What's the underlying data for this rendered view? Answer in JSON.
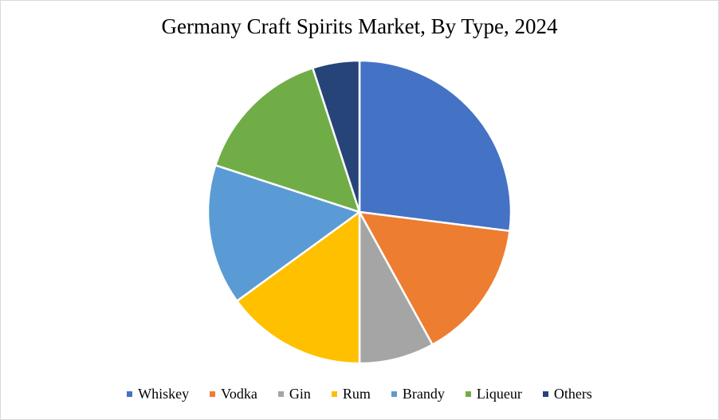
{
  "chart_data": {
    "type": "pie",
    "title": "Germany Craft Spirits Market, By Type, 2024",
    "legend_position": "bottom",
    "slices": [
      {
        "label": "Whiskey",
        "value": 27,
        "color": "#4472C4"
      },
      {
        "label": "Vodka",
        "value": 15,
        "color": "#ED7D31"
      },
      {
        "label": "Gin",
        "value": 8,
        "color": "#A5A5A5"
      },
      {
        "label": "Rum",
        "value": 15,
        "color": "#FFC000"
      },
      {
        "label": "Brandy",
        "value": 15,
        "color": "#5B9BD5"
      },
      {
        "label": "Liqueur",
        "value": 15,
        "color": "#70AD47"
      },
      {
        "label": "Others",
        "value": 5,
        "color": "#264478"
      }
    ]
  }
}
